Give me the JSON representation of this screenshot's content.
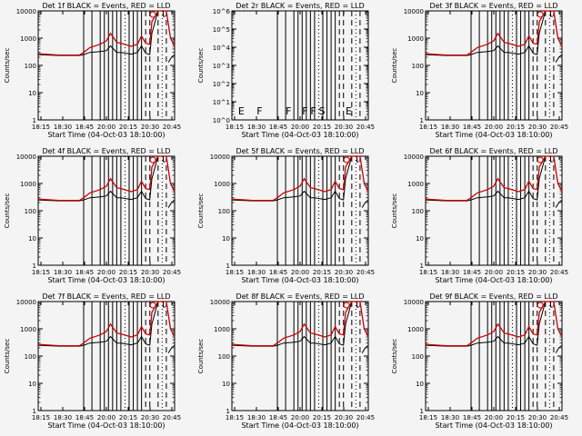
{
  "chart_data": [
    {
      "type": "line",
      "title": "Det 1f BLACK = Events, RED = LLD",
      "ylabel": "Counts/sec",
      "xlabel": "Start Time (04-Oct-03 18:10:00)",
      "xticks": [
        "18:15",
        "18:30",
        "18:45",
        "20:00",
        "20:15",
        "20:30",
        "20:45"
      ],
      "yscale": "log",
      "ylim": [
        1,
        10000
      ],
      "yticks": [
        "1",
        "10",
        "100",
        "1000",
        "10000"
      ],
      "annotations": []
    },
    {
      "type": "line",
      "title": "Det 2r BLACK = Events, RED = LLD",
      "ylabel": "Counts/sec",
      "xlabel": "Start Time (04-Oct-03 18:10:00)",
      "xticks": [
        "18:15",
        "18:30",
        "18:45",
        "20:00",
        "20:15",
        "20:30",
        "20:45"
      ],
      "yscale": "log",
      "ylim": [
        1,
        1000000
      ],
      "yticks": [
        "10^0",
        "10^1",
        "10^2",
        "10^3",
        "10^4",
        "10^5",
        "10^6"
      ],
      "annotations": [
        "E",
        "F",
        "F",
        "F",
        "F",
        "S",
        "E"
      ]
    },
    {
      "type": "line",
      "title": "Det 3f BLACK = Events, RED = LLD",
      "ylabel": "Counts/sec",
      "xlabel": "Start Time (04-Oct-03 18:10:00)",
      "xticks": [
        "18:15",
        "18:30",
        "18:45",
        "20:00",
        "20:15",
        "20:30",
        "20:45"
      ],
      "yscale": "log",
      "ylim": [
        1,
        10000
      ],
      "yticks": [
        "1",
        "10",
        "100",
        "1000",
        "10000"
      ],
      "annotations": []
    },
    {
      "type": "line",
      "title": "Det 4f BLACK = Events, RED = LLD",
      "ylabel": "Counts/sec",
      "xlabel": "Start Time (04-Oct-03 18:10:00)",
      "xticks": [
        "18:15",
        "18:30",
        "18:45",
        "20:00",
        "20:15",
        "20:30",
        "20:45"
      ],
      "yscale": "log",
      "ylim": [
        1,
        10000
      ],
      "yticks": [
        "1",
        "10",
        "100",
        "1000",
        "10000"
      ],
      "annotations": []
    },
    {
      "type": "line",
      "title": "Det 5f BLACK = Events, RED = LLD",
      "ylabel": "Counts/sec",
      "xlabel": "Start Time (04-Oct-03 18:10:00)",
      "xticks": [
        "18:15",
        "18:30",
        "18:45",
        "20:00",
        "20:15",
        "20:30",
        "20:45"
      ],
      "yscale": "log",
      "ylim": [
        1,
        10000
      ],
      "yticks": [
        "1",
        "10",
        "100",
        "1000",
        "10000"
      ],
      "annotations": []
    },
    {
      "type": "line",
      "title": "Det 6f BLACK = Events, RED = LLD",
      "ylabel": "Counts/sec",
      "xlabel": "Start Time (04-Oct-03 18:10:00)",
      "xticks": [
        "18:15",
        "18:30",
        "18:45",
        "20:00",
        "20:15",
        "20:30",
        "20:45"
      ],
      "yscale": "log",
      "ylim": [
        1,
        10000
      ],
      "yticks": [
        "1",
        "10",
        "100",
        "1000",
        "10000"
      ],
      "annotations": []
    },
    {
      "type": "line",
      "title": "Det 7f BLACK = Events, RED = LLD",
      "ylabel": "Counts/sec",
      "xlabel": "Start Time (04-Oct-03 18:10:00)",
      "xticks": [
        "18:15",
        "18:30",
        "18:45",
        "20:00",
        "20:15",
        "20:30",
        "20:45"
      ],
      "yscale": "log",
      "ylim": [
        1,
        10000
      ],
      "yticks": [
        "1",
        "10",
        "100",
        "1000",
        "10000"
      ],
      "annotations": []
    },
    {
      "type": "line",
      "title": "Det 8f BLACK = Events, RED = LLD",
      "ylabel": "Counts/sec",
      "xlabel": "Start Time (04-Oct-03 18:10:00)",
      "xticks": [
        "18:15",
        "18:30",
        "18:45",
        "20:00",
        "20:15",
        "20:30",
        "20:45"
      ],
      "yscale": "log",
      "ylim": [
        1,
        10000
      ],
      "yticks": [
        "1",
        "10",
        "100",
        "1000",
        "10000"
      ],
      "annotations": []
    },
    {
      "type": "line",
      "title": "Det 9f BLACK = Events, RED = LLD",
      "ylabel": "Counts/sec",
      "xlabel": "Start Time (04-Oct-03 18:10:00)",
      "xticks": [
        "18:15",
        "18:30",
        "18:45",
        "20:00",
        "20:15",
        "20:30",
        "20:45"
      ],
      "yscale": "log",
      "ylim": [
        1,
        10000
      ],
      "yticks": [
        "1",
        "10",
        "100",
        "1000",
        "10000"
      ],
      "annotations": []
    }
  ],
  "series_data": {
    "time_minutes": [
      0,
      10,
      15,
      20,
      22,
      25,
      30,
      33,
      35,
      38,
      40,
      45,
      48,
      50,
      52,
      54,
      55,
      58,
      60,
      62,
      64,
      66
    ],
    "black": [
      250,
      230,
      230,
      230,
      250,
      300,
      320,
      350,
      520,
      300,
      300,
      260,
      300,
      520,
      280,
      250,
      1500,
      10000,
      10000,
      null,
      null,
      null
    ],
    "red": [
      270,
      240,
      240,
      240,
      300,
      450,
      600,
      800,
      1500,
      700,
      650,
      500,
      600,
      1200,
      650,
      600,
      4000,
      10000,
      10000,
      10000,
      1000,
      500
    ],
    "black_tail": [
      130,
      200,
      250
    ],
    "solid_markers_min": [
      22,
      26,
      30,
      32,
      34,
      36,
      38,
      40,
      44,
      46,
      48,
      50
    ],
    "dashed_markers_min": [
      52,
      54,
      58,
      62
    ],
    "dotted_markers_min": [
      42,
      60
    ],
    "axis_span_min": [
      0,
      66
    ]
  },
  "colors": {
    "black_series": "#000000",
    "red_series": "#cc0000",
    "background": "#f4f4f4"
  }
}
